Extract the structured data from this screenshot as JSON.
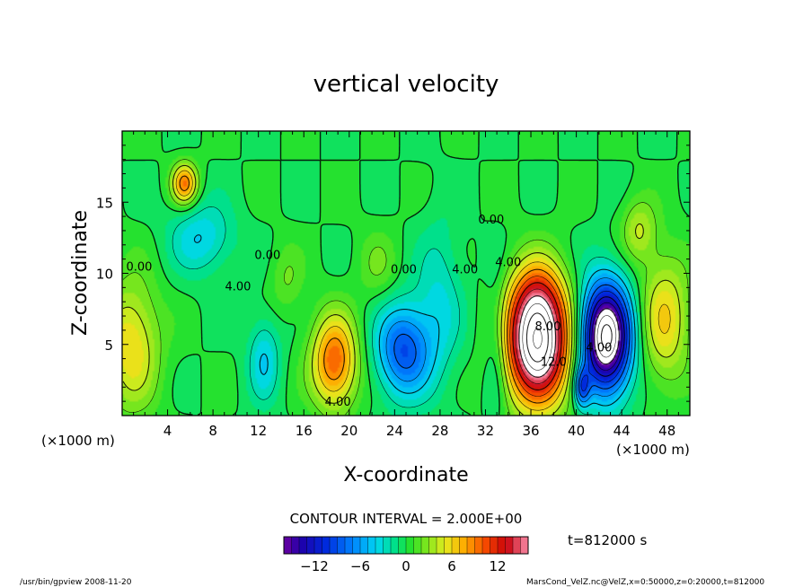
{
  "chart_data": {
    "type": "heatmap",
    "title": "vertical velocity",
    "xlabel": "X-coordinate",
    "ylabel": "Z-coordinate",
    "x_unit_left": "(×1000 m)",
    "x_unit_right": "(×1000 m)",
    "y_unit": "(×1000 m)",
    "xlim": [
      0,
      50
    ],
    "ylim": [
      0,
      20
    ],
    "xticks": [
      4,
      8,
      12,
      16,
      20,
      24,
      28,
      32,
      36,
      40,
      44,
      48
    ],
    "yticks": [
      5,
      10,
      15
    ],
    "contour_interval": "CONTOUR INTERVAL = 2.000E+00",
    "time_label": "t=812000 s",
    "colorbar": {
      "vmin": -16,
      "vmax": 16,
      "ticks": [
        -12,
        -6,
        0,
        6,
        12
      ]
    },
    "contour_labels": [
      {
        "x": 1.5,
        "z": 10.2,
        "text": "0.00"
      },
      {
        "x": 10.2,
        "z": 8.8,
        "text": "4.00"
      },
      {
        "x": 12.8,
        "z": 11.0,
        "text": "0.00"
      },
      {
        "x": 24.8,
        "z": 10.0,
        "text": "0.00"
      },
      {
        "x": 30.2,
        "z": 10.0,
        "text": "4.00"
      },
      {
        "x": 32.5,
        "z": 13.5,
        "text": "0.00"
      },
      {
        "x": 34.0,
        "z": 10.5,
        "text": "4.00"
      },
      {
        "x": 37.5,
        "z": 6.0,
        "text": "8.00"
      },
      {
        "x": 38.0,
        "z": 3.5,
        "text": "12.0"
      },
      {
        "x": 42.0,
        "z": 4.5,
        "text": "4.00"
      },
      {
        "x": 19.0,
        "z": 0.7,
        "text": "4.00"
      }
    ],
    "cells": [
      {
        "x": 36.6,
        "z": 5.2,
        "sx": 2.8,
        "sz": 4.2,
        "w": 22
      },
      {
        "x": 36.5,
        "z": 8.5,
        "sx": 2.2,
        "sz": 2.5,
        "w": 4
      },
      {
        "x": 42.6,
        "z": 5.5,
        "sx": 2.2,
        "sz": 3.8,
        "w": -21
      },
      {
        "x": 18.7,
        "z": 3.8,
        "sx": 2.0,
        "sz": 3.2,
        "w": 10
      },
      {
        "x": 24.8,
        "z": 4.6,
        "sx": 2.4,
        "sz": 3.2,
        "w": -9
      },
      {
        "x": 28.0,
        "z": 8.0,
        "sx": 2.0,
        "sz": 5.5,
        "w": -3
      },
      {
        "x": 47.8,
        "z": 6.8,
        "sx": 2.2,
        "sz": 4.5,
        "w": 6
      },
      {
        "x": 45.5,
        "z": 13.0,
        "sx": 1.5,
        "sz": 2.2,
        "w": 4
      },
      {
        "x": 0.8,
        "z": 5.0,
        "sx": 2.5,
        "sz": 4.5,
        "w": 6
      },
      {
        "x": 5.5,
        "z": 16.3,
        "sx": 1.1,
        "sz": 1.4,
        "w": 9
      },
      {
        "x": 7.0,
        "z": 12.5,
        "sx": 2.8,
        "sz": 2.5,
        "w": -4
      },
      {
        "x": 12.5,
        "z": 4.0,
        "sx": 1.4,
        "sz": 3.0,
        "w": -4
      },
      {
        "x": 40.5,
        "z": 2.0,
        "sx": 0.7,
        "sz": 1.4,
        "w": -8
      },
      {
        "x": 33.0,
        "z": 5.0,
        "sx": 1.0,
        "sz": 5.0,
        "w": -3
      },
      {
        "x": 14.5,
        "z": 9.5,
        "sx": 1.5,
        "sz": 2.5,
        "w": 2
      },
      {
        "x": 22.5,
        "z": 10.5,
        "sx": 1.8,
        "sz": 2.5,
        "w": 2
      }
    ]
  },
  "footer": {
    "left": "/usr/bin/gpview  2008-11-20",
    "right": "MarsCond_VelZ.nc@VelZ,x=0:50000,z=0:20000,t=812000"
  }
}
